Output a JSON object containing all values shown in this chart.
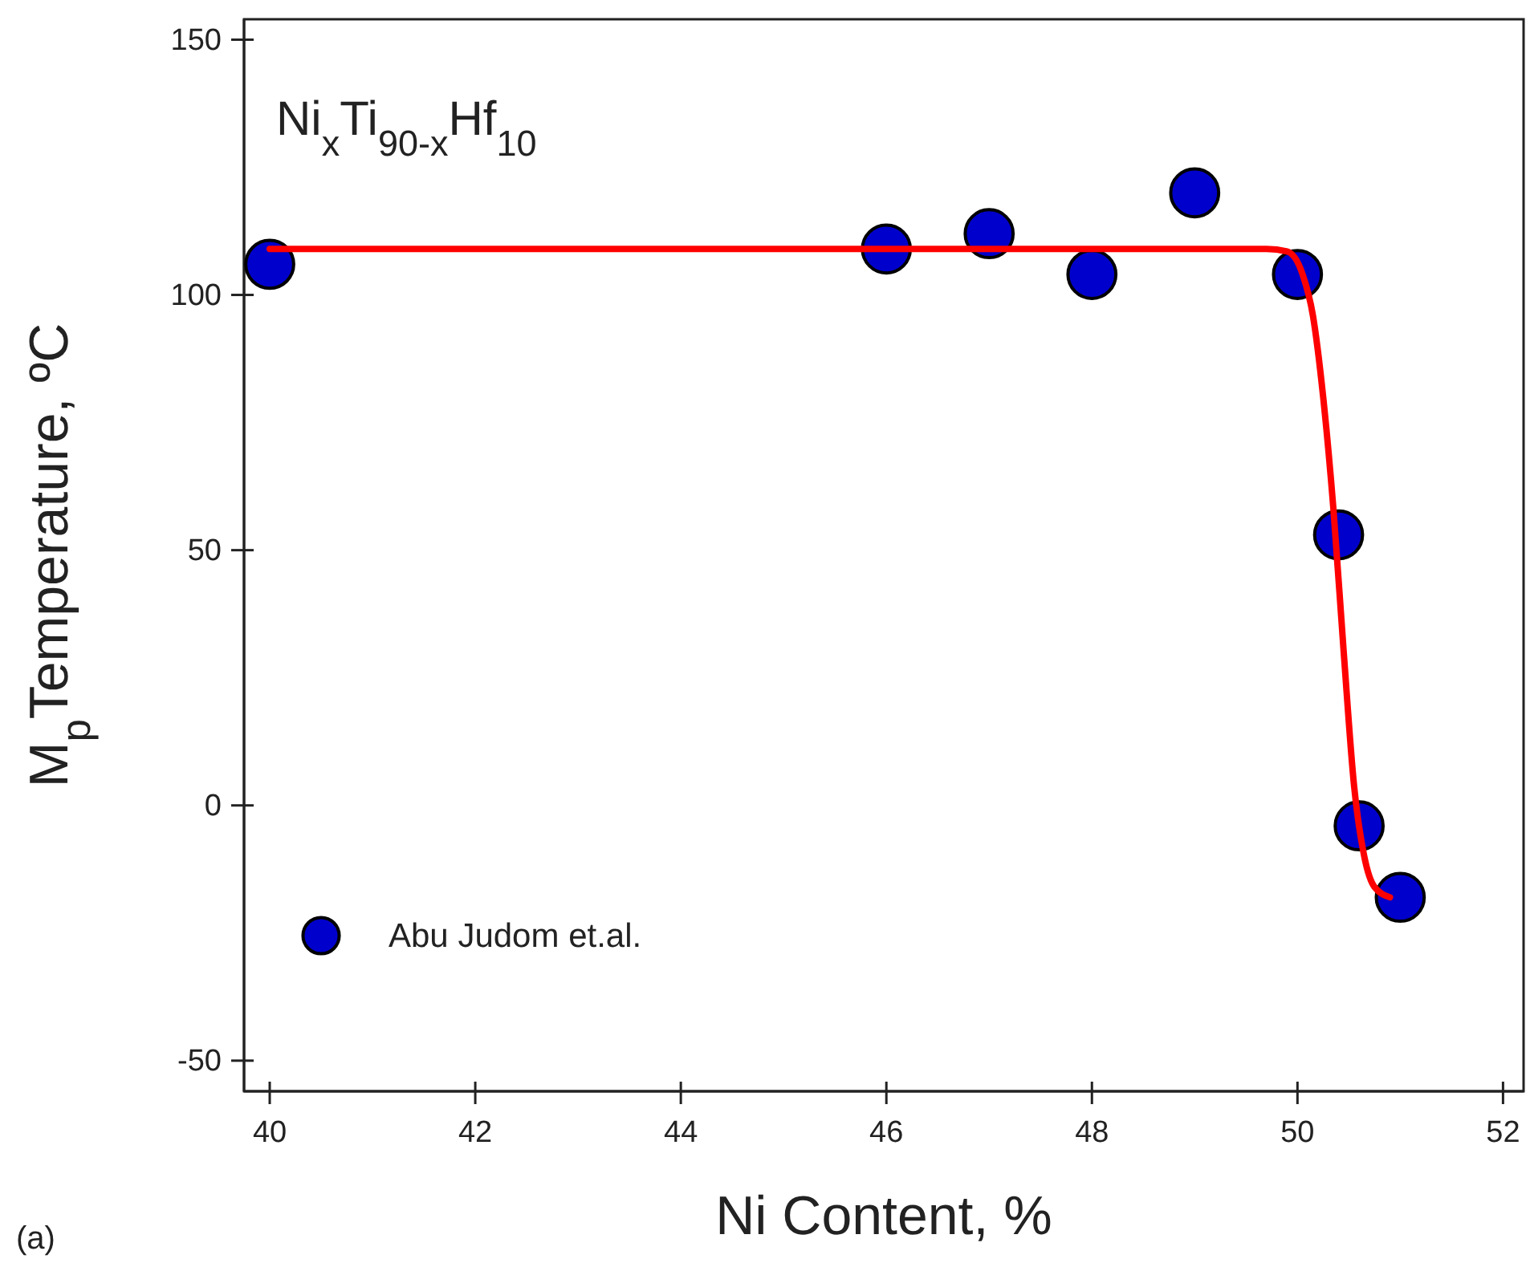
{
  "chart_data": {
    "type": "scatter",
    "xlabel": "Ni Content, %",
    "ylabel": "M$_{p}$Temperature, ºC",
    "annotations": [
      "Ni$_{x}$Ti$_{90-x}$Hf$_{10}$",
      "(a)"
    ],
    "xlim": [
      39.75,
      52.2
    ],
    "xticks": [
      40,
      42,
      44,
      46,
      48,
      50,
      52
    ],
    "ylim": [
      -56,
      154
    ],
    "yticks": [
      -50,
      0,
      50,
      100,
      150
    ],
    "legend": "bottom left",
    "grid": false,
    "series": [
      {
        "name": "Abu Judom et.al.",
        "marker": "circle",
        "color": "#0000cc",
        "x": [
          40,
          46,
          47,
          48,
          49,
          50,
          50.4,
          50.6,
          51
        ],
        "values": [
          106,
          109,
          112,
          104,
          120,
          104,
          53,
          -4,
          -18
        ]
      },
      {
        "type": "line",
        "color": "#ff0000",
        "line_style": "solid",
        "marker": "none",
        "x": [
          40,
          49.7,
          49.9,
          50.05,
          50.15,
          50.25,
          50.35,
          50.45,
          50.55,
          50.65,
          50.75,
          50.9
        ],
        "values": [
          109,
          109,
          108.5,
          104,
          96,
          80,
          58,
          30,
          4,
          -10,
          -16,
          -18
        ]
      }
    ]
  }
}
